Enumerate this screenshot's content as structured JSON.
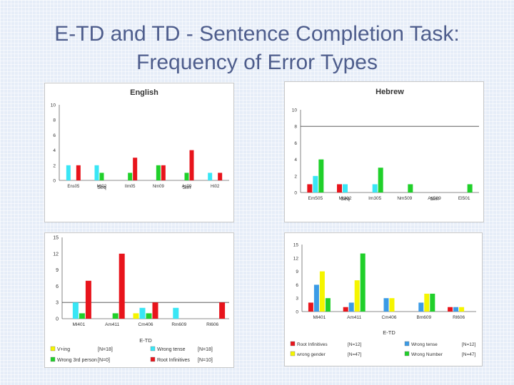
{
  "slide": {
    "title_line1": "E-TD and TD - Sentence Completion Task:",
    "title_line2": "Frequency of Error Types"
  },
  "colors": {
    "red": "#e8141c",
    "cyan": "#39e6f5",
    "green": "#20d02a",
    "yellow": "#f5f500",
    "blue": "#3b9be6",
    "teal": "#1fb8b8"
  },
  "chart_data": [
    {
      "type": "bar",
      "title": "English",
      "categories": [
        "Ens05",
        "Mt02",
        "Ilm05",
        "Nm09",
        "As09",
        "Hi02"
      ],
      "group_labels": [
        {
          "text": "Seq",
          "start": 0,
          "end": 2
        },
        {
          "text": "Sim",
          "start": 3,
          "end": 5
        }
      ],
      "series": [
        {
          "color": "cyan",
          "values": [
            2,
            2,
            0,
            0,
            0,
            1
          ]
        },
        {
          "color": "green",
          "values": [
            0,
            1,
            1,
            2,
            1,
            0
          ]
        },
        {
          "color": "red",
          "values": [
            2,
            0,
            3,
            2,
            4,
            1
          ]
        }
      ],
      "ylim": [
        0,
        10
      ],
      "yticks": [
        0,
        2,
        4,
        6,
        8,
        10
      ],
      "refline": null
    },
    {
      "type": "bar",
      "title": "Hebrew",
      "categories": [
        "Em505",
        "Mt302",
        "Im305",
        "Nm509",
        "As509",
        "El501"
      ],
      "group_labels": [
        {
          "text": "Seq",
          "start": 0,
          "end": 2
        },
        {
          "text": "Sim",
          "start": 3,
          "end": 5
        }
      ],
      "series": [
        {
          "color": "red",
          "values": [
            1,
            1,
            0,
            0,
            0,
            0
          ]
        },
        {
          "color": "cyan",
          "values": [
            2,
            1,
            1,
            0,
            0,
            0
          ]
        },
        {
          "color": "green",
          "values": [
            4,
            0,
            3,
            1,
            0,
            1
          ]
        }
      ],
      "ylim": [
        0,
        10
      ],
      "yticks": [
        0,
        2,
        4,
        6,
        8,
        10
      ],
      "ytick_labels": [
        "0",
        "2",
        "4",
        "6",
        "8",
        "10"
      ],
      "refline": 8
    },
    {
      "type": "bar",
      "xlabel": "E-TD",
      "categories": [
        "Ml401",
        "Am411",
        "Cm406",
        "Rm609",
        "Rl606"
      ],
      "series": [
        {
          "name": "V+ing",
          "count_label": "[N=18]",
          "color": "yellow",
          "values": [
            0,
            0,
            1,
            0,
            0
          ]
        },
        {
          "name": "Wrong tense",
          "count_label": "[N=18]",
          "color": "cyan",
          "values": [
            3,
            0,
            2,
            2,
            0
          ]
        },
        {
          "name": "Wrong 3rd person",
          "count_label": "[N=0]",
          "color": "green",
          "values": [
            1,
            1,
            1,
            0,
            0
          ]
        },
        {
          "name": "Root Infinitives",
          "count_label": "[N=10]",
          "color": "red",
          "values": [
            7,
            12,
            3,
            0,
            3
          ]
        }
      ],
      "ylim": [
        0,
        15
      ],
      "yticks": [
        0,
        3,
        6,
        9,
        12,
        15
      ],
      "refline": 3
    },
    {
      "type": "bar",
      "xlabel": "E-TD",
      "categories": [
        "Ml401",
        "Am411",
        "Cm406",
        "Bm609",
        "Rl606"
      ],
      "series": [
        {
          "name": "Root Infinitives",
          "count_label": "[N=12]",
          "color": "red",
          "values": [
            2,
            1,
            0,
            0,
            1
          ]
        },
        {
          "name": "Wrong tense",
          "count_label": "[N=12]",
          "color": "blue",
          "values": [
            6,
            2,
            3,
            2,
            1
          ]
        },
        {
          "name": "wrong gender",
          "count_label": "[N=47]",
          "color": "yellow",
          "values": [
            9,
            7,
            3,
            4,
            1
          ]
        },
        {
          "name": "Wrong Number",
          "count_label": "[N=47]",
          "color": "green",
          "values": [
            3,
            13,
            0,
            4,
            0
          ]
        }
      ],
      "ylim": [
        0,
        15
      ],
      "yticks": [
        0,
        3,
        6,
        9,
        12,
        15
      ],
      "ytick_labels": [
        "0",
        "3",
        "6",
        "9",
        "12",
        "15"
      ],
      "refline": null
    }
  ]
}
